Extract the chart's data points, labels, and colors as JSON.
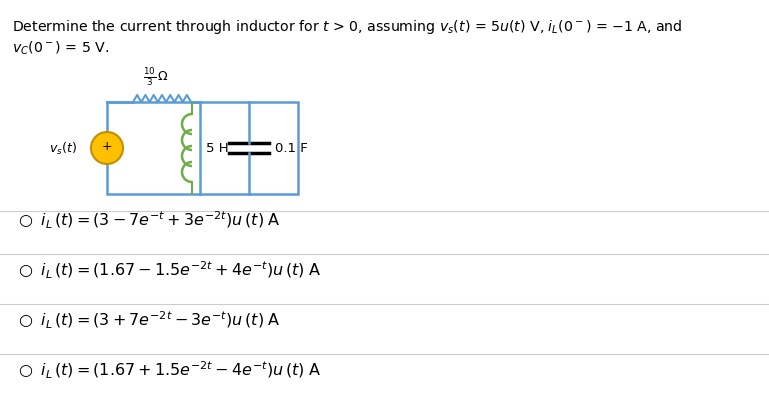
{
  "title_line1": "Determine the current through inductor for $t$ > 0, assuming $v_s(t)$ = 5$u(t)$ V, $i_L$(0$^-$) = −1 A, and",
  "title_line2": "$v_C$(0$^-$) = 5 V.",
  "resistor_label": "$\\frac{10}{3}\\,\\Omega$",
  "inductor_label": "5 H",
  "capacitor_label": "0.1 F",
  "source_label": "$v_s(t)$",
  "bg_color": "#ffffff",
  "text_color": "#000000",
  "circuit_color": "#5b9bd5",
  "inductor_color": "#70ad47",
  "source_color": "#ffc000",
  "source_edge_color": "#c09000",
  "divider_color": "#cccccc",
  "option1": "$\\bigcirc\\;\\; i_L\\,(t) = \\left(3 - 7e^{-t} + 3e^{-2t}\\right)u\\,(t)\\;\\mathrm{A}$",
  "option2": "$\\bigcirc\\;\\; i_L\\,(t) = \\left(1.67 - 1.5e^{-2t} + 4e^{-t}\\right)u\\,(t)\\;\\mathrm{A}$",
  "option3": "$\\bigcirc\\;\\; i_L\\,(t) = \\left(3 + 7e^{-2t} - 3e^{-t}\\right)u\\,(t)\\;\\mathrm{A}$",
  "option4": "$\\bigcirc\\;\\; i_L\\,(t) = \\left(1.67 + 1.5e^{-2t} - 4e^{-t}\\right)u\\,(t)\\;\\mathrm{A}$"
}
